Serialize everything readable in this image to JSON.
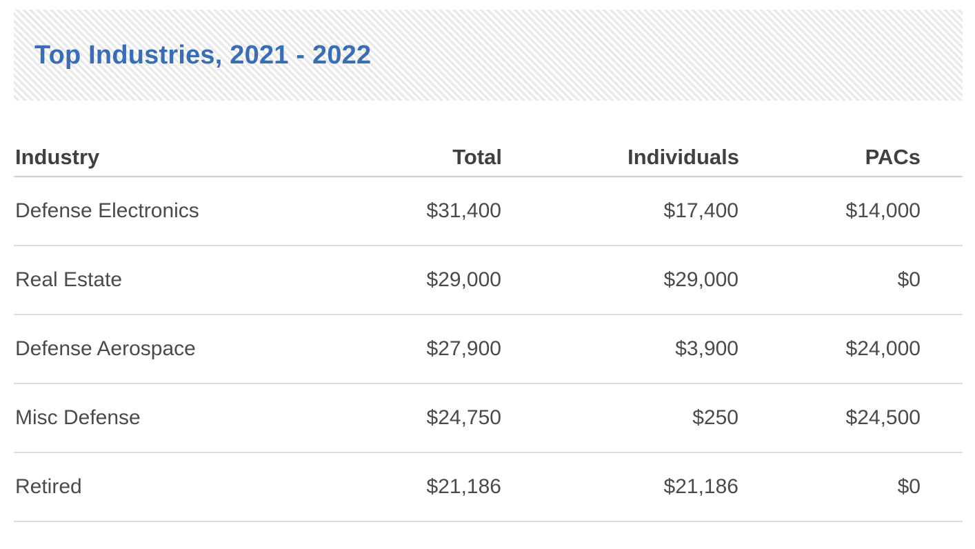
{
  "banner": {
    "title": "Top Industries, 2021 - 2022"
  },
  "table": {
    "headers": {
      "industry": "Industry",
      "total": "Total",
      "individuals": "Individuals",
      "pacs": "PACs"
    },
    "rows": [
      {
        "industry": "Defense Electronics",
        "total": "$31,400",
        "individuals": "$17,400",
        "pacs": "$14,000"
      },
      {
        "industry": "Real Estate",
        "total": "$29,000",
        "individuals": "$29,000",
        "pacs": "$0"
      },
      {
        "industry": "Defense Aerospace",
        "total": "$27,900",
        "individuals": "$3,900",
        "pacs": "$24,000"
      },
      {
        "industry": "Misc Defense",
        "total": "$24,750",
        "individuals": "$250",
        "pacs": "$24,500"
      },
      {
        "industry": "Retired",
        "total": "$21,186",
        "individuals": "$21,186",
        "pacs": "$0"
      }
    ]
  },
  "colors": {
    "title_blue": "#3a6eb4",
    "banner_stripe_gray": "#e9e9e9",
    "header_text": "#404040",
    "body_text": "#4a4a4a",
    "header_border": "#cfcfcf",
    "row_border": "#dddddd"
  },
  "chart_data": {
    "type": "table",
    "title": "Top Industries, 2021 - 2022",
    "columns": [
      "Industry",
      "Total",
      "Individuals",
      "PACs"
    ],
    "rows": [
      [
        "Defense Electronics",
        31400,
        17400,
        14000
      ],
      [
        "Real Estate",
        29000,
        29000,
        0
      ],
      [
        "Defense Aerospace",
        27900,
        3900,
        24000
      ],
      [
        "Misc Defense",
        24750,
        250,
        24500
      ],
      [
        "Retired",
        21186,
        21186,
        0
      ]
    ],
    "value_format": "USD",
    "sort": "Total descending"
  }
}
